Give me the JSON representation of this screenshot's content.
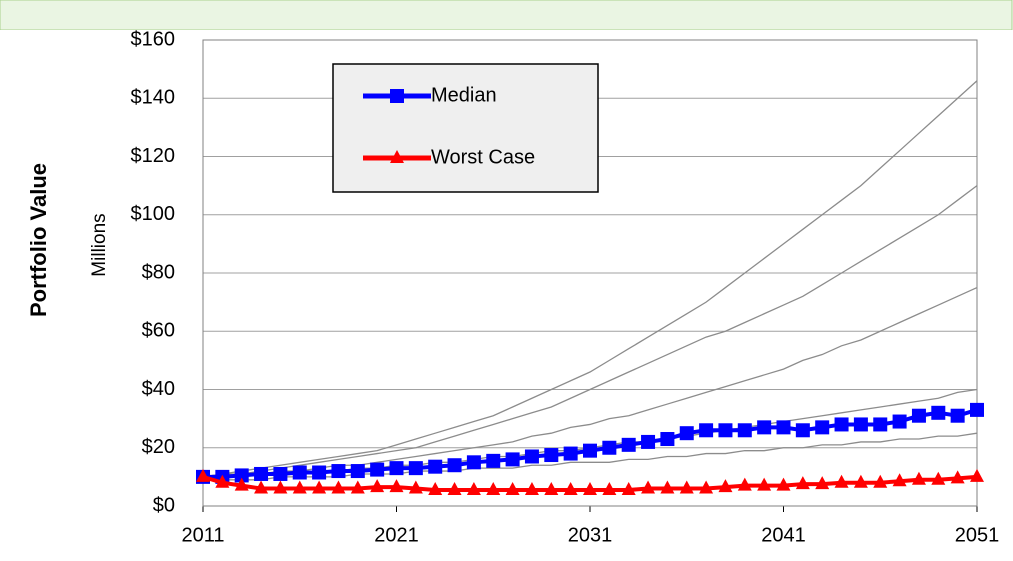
{
  "chart_data": {
    "type": "line",
    "ylabel": "Portfolio Value",
    "yunit": "Millions",
    "x": [
      2011,
      2012,
      2013,
      2014,
      2015,
      2016,
      2017,
      2018,
      2019,
      2020,
      2021,
      2022,
      2023,
      2024,
      2025,
      2026,
      2027,
      2028,
      2029,
      2030,
      2031,
      2032,
      2033,
      2034,
      2035,
      2036,
      2037,
      2038,
      2039,
      2040,
      2041,
      2042,
      2043,
      2044,
      2045,
      2046,
      2047,
      2048,
      2049,
      2050,
      2051
    ],
    "xlim": [
      2011,
      2051
    ],
    "xticks": [
      2011,
      2021,
      2031,
      2041,
      2051
    ],
    "ylim": [
      0,
      160
    ],
    "yticks": [
      {
        "value": 0,
        "label": "$0"
      },
      {
        "value": 20,
        "label": "$20"
      },
      {
        "value": 40,
        "label": "$40"
      },
      {
        "value": 60,
        "label": "$60"
      },
      {
        "value": 80,
        "label": "$80"
      },
      {
        "value": 100,
        "label": "$100"
      },
      {
        "value": 120,
        "label": "$120"
      },
      {
        "value": 140,
        "label": "$140"
      },
      {
        "value": 160,
        "label": "$160"
      }
    ],
    "grid": true,
    "legend": "top-left",
    "series": [
      {
        "color": "#8c8c8c",
        "values": [
          10,
          11,
          12,
          13,
          14,
          15,
          16,
          17,
          18,
          19,
          21,
          23,
          25,
          27,
          29,
          31,
          34,
          37,
          40,
          43,
          46,
          50,
          54,
          58,
          62,
          66,
          70,
          75,
          80,
          85,
          90,
          95,
          100,
          105,
          110,
          116,
          122,
          128,
          134,
          140,
          146
        ]
      },
      {
        "color": "#8c8c8c",
        "values": [
          10,
          11,
          11,
          12,
          13,
          14,
          15,
          16,
          17,
          18,
          19,
          20,
          22,
          24,
          26,
          28,
          30,
          32,
          34,
          37,
          40,
          43,
          46,
          49,
          52,
          55,
          58,
          60,
          63,
          66,
          69,
          72,
          76,
          80,
          84,
          88,
          92,
          96,
          100,
          105,
          110
        ]
      },
      {
        "color": "#8c8c8c",
        "values": [
          10,
          10,
          11,
          11,
          12,
          12,
          13,
          14,
          14,
          15,
          16,
          17,
          18,
          19,
          20,
          21,
          22,
          24,
          25,
          27,
          28,
          30,
          31,
          33,
          35,
          37,
          39,
          41,
          43,
          45,
          47,
          50,
          52,
          55,
          57,
          60,
          63,
          66,
          69,
          72,
          75
        ]
      },
      {
        "color": "#8c8c8c",
        "values": [
          10,
          10,
          10,
          11,
          11,
          11,
          12,
          12,
          13,
          13,
          14,
          14,
          15,
          15,
          16,
          17,
          17,
          18,
          19,
          19,
          20,
          21,
          22,
          22,
          23,
          24,
          25,
          26,
          27,
          28,
          29,
          30,
          31,
          32,
          33,
          34,
          35,
          36,
          37,
          39,
          40
        ]
      },
      {
        "color": "#8c8c8c",
        "values": [
          10,
          9,
          9,
          9,
          10,
          10,
          10,
          10,
          11,
          11,
          11,
          12,
          12,
          12,
          13,
          13,
          13,
          14,
          14,
          15,
          15,
          15,
          16,
          16,
          17,
          17,
          18,
          18,
          19,
          19,
          20,
          20,
          21,
          21,
          22,
          22,
          23,
          23,
          24,
          24,
          25
        ]
      },
      {
        "name": "Median",
        "color": "#0000ff",
        "marker": "square",
        "values": [
          10,
          10,
          10.5,
          11,
          11,
          11.5,
          11.5,
          12,
          12,
          12.5,
          13,
          13,
          13.5,
          14,
          15,
          15.5,
          16,
          17,
          17.5,
          18,
          19,
          20,
          21,
          22,
          23,
          25,
          26,
          26,
          26,
          27,
          27,
          26,
          27,
          28,
          28,
          28,
          29,
          31,
          32,
          31,
          33
        ]
      },
      {
        "name": "Worst Case",
        "color": "#ff0000",
        "marker": "triangle",
        "values": [
          10,
          8,
          7,
          6,
          6,
          6,
          6,
          6,
          6,
          6.5,
          6.5,
          6,
          5.5,
          5.5,
          5.5,
          5.5,
          5.5,
          5.5,
          5.5,
          5.5,
          5.5,
          5.5,
          5.5,
          6,
          6,
          6,
          6,
          6.5,
          7,
          7,
          7,
          7.5,
          7.5,
          8,
          8,
          8,
          8.5,
          9,
          9,
          9.5,
          10
        ]
      }
    ]
  }
}
